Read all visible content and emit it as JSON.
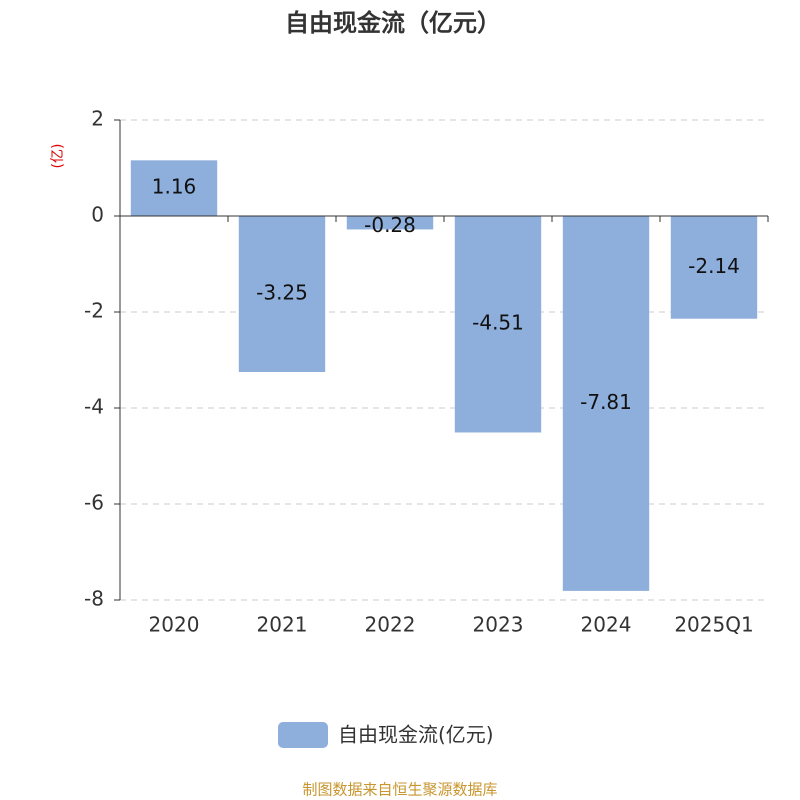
{
  "chart_data": {
    "type": "bar",
    "title": "自由现金流（亿元）",
    "y_label": "(亿)",
    "categories": [
      "2020",
      "2021",
      "2022",
      "2023",
      "2024",
      "2025Q1"
    ],
    "series": [
      {
        "name": "自由现金流(亿元)",
        "color": "#8eaedb",
        "values": [
          1.16,
          -3.25,
          -0.28,
          -4.51,
          -7.81,
          -2.14
        ]
      }
    ],
    "ylim": [
      -8,
      2
    ],
    "yticks": [
      2,
      0,
      -2,
      -4,
      -6,
      -8
    ],
    "grid": true,
    "legend": "bottom",
    "source": "制图数据来自恒生聚源数据库"
  }
}
